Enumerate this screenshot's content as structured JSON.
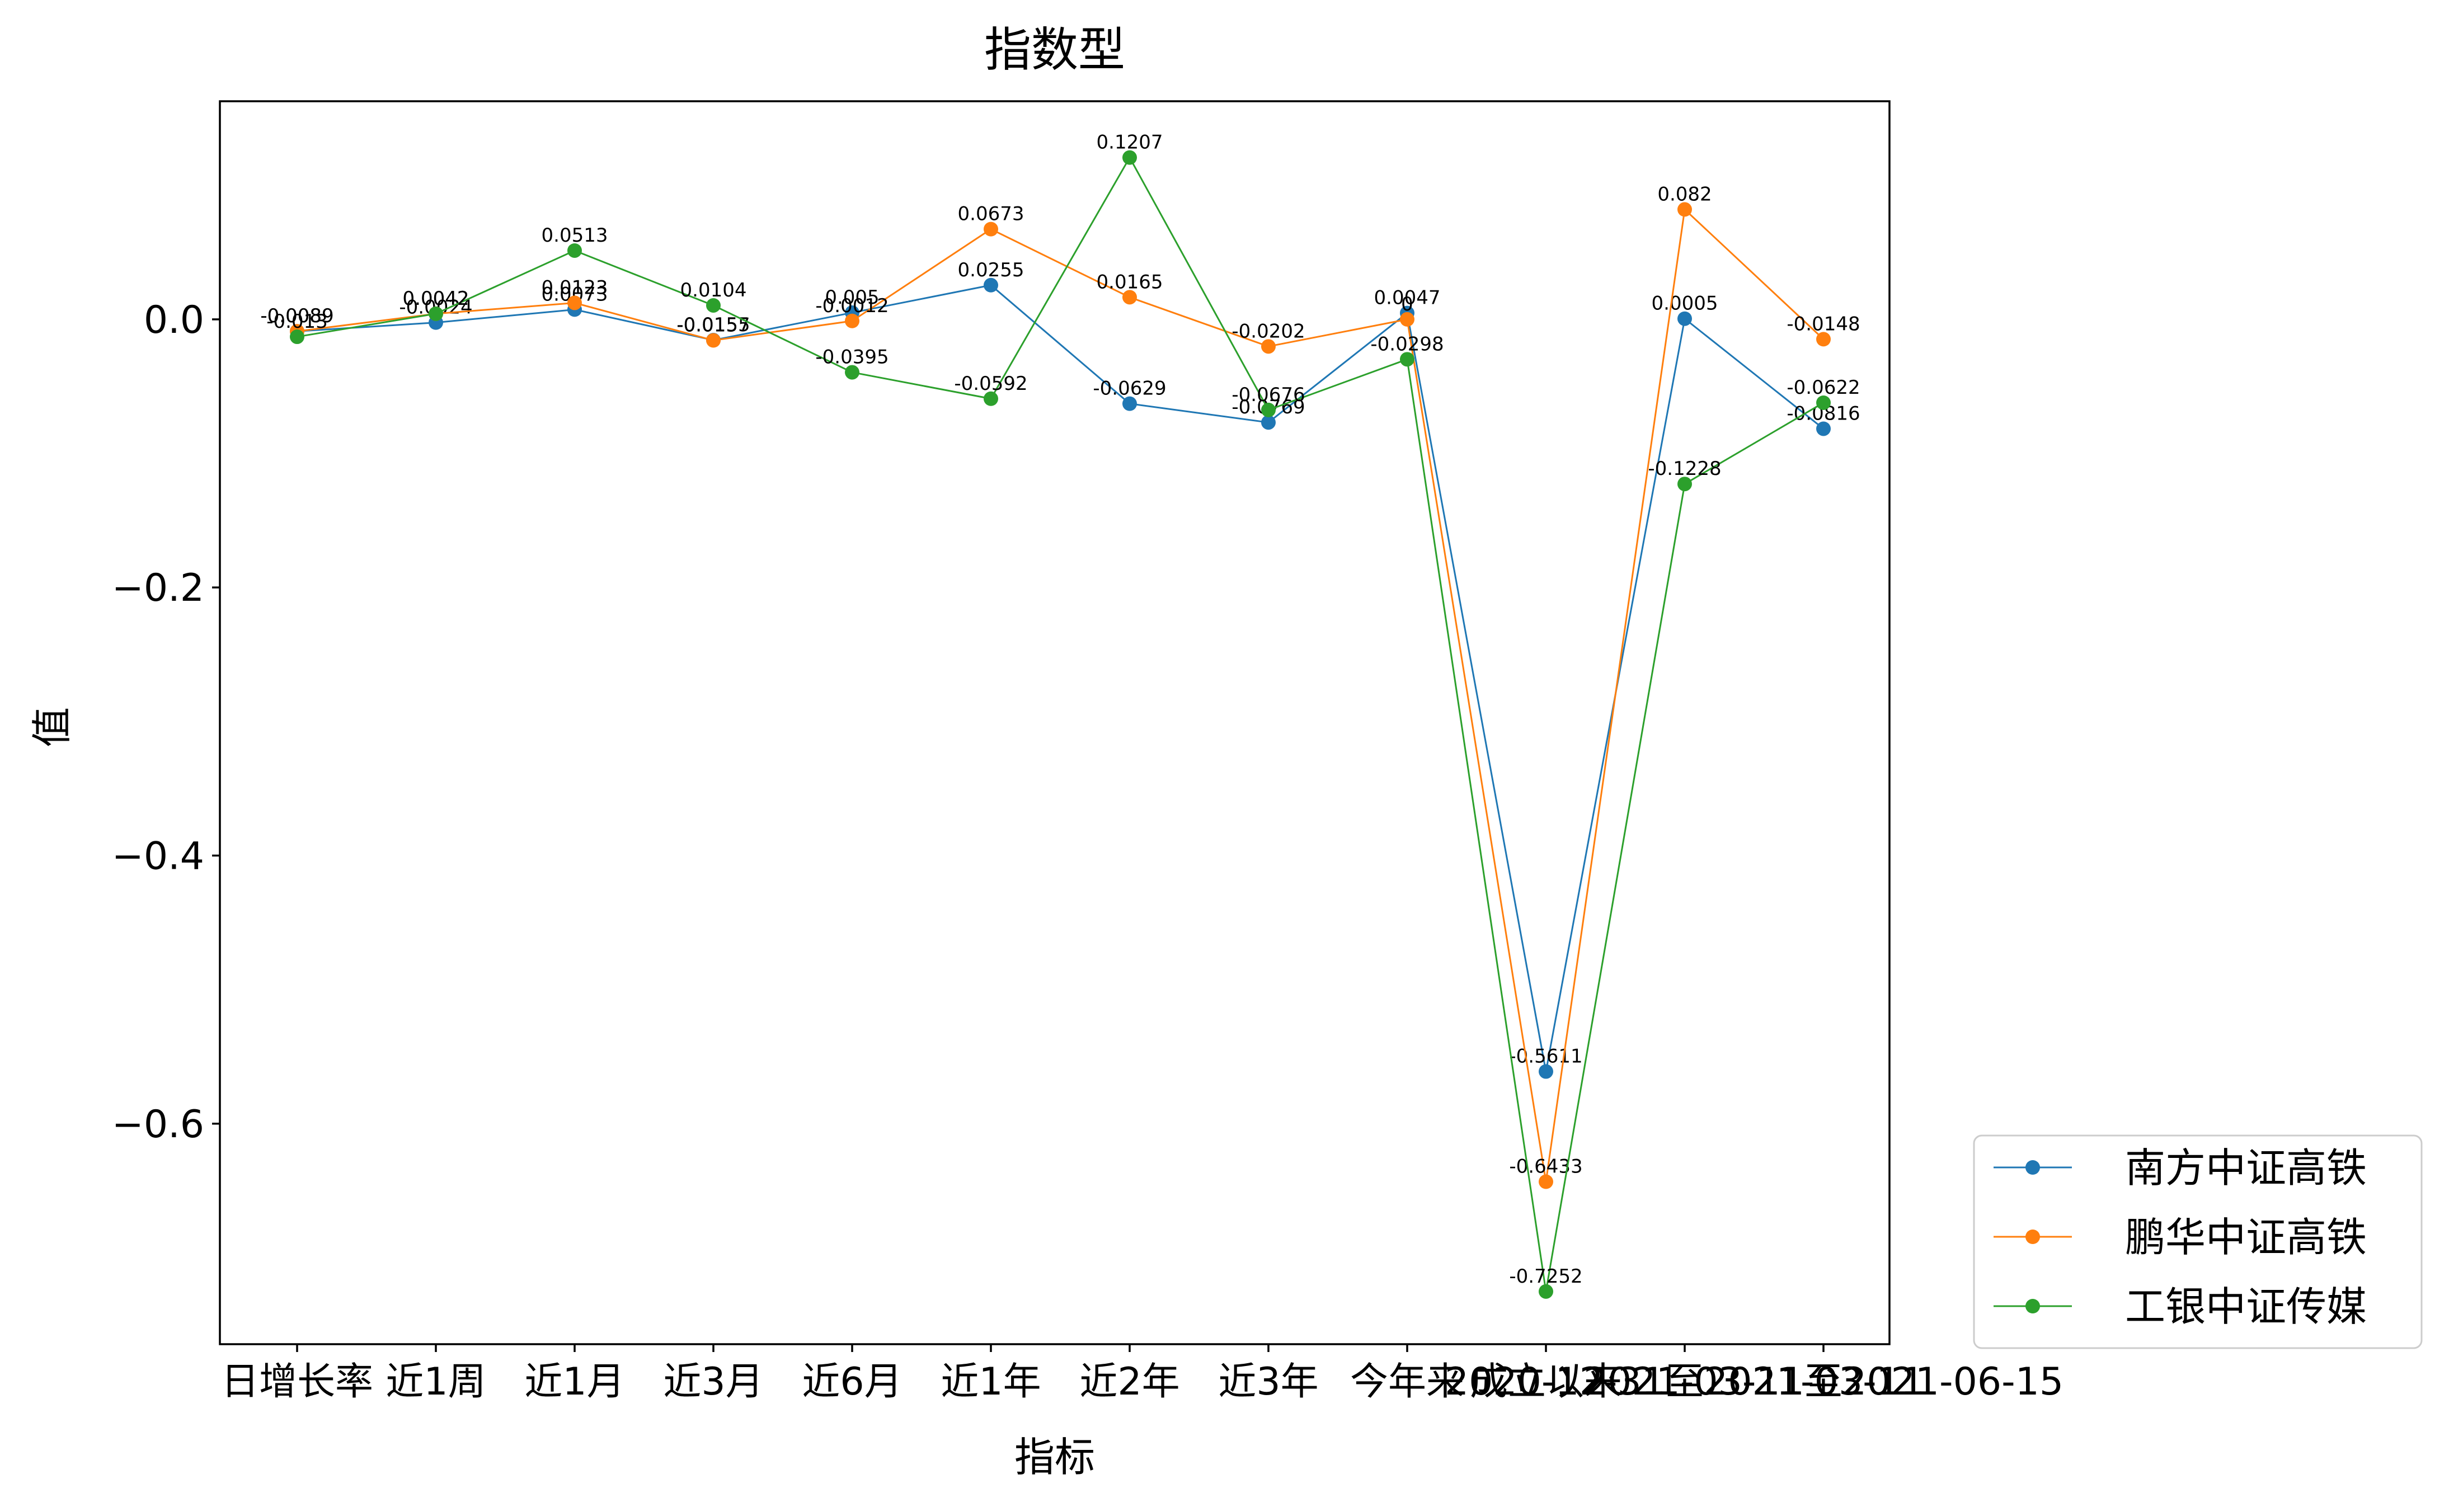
{
  "chart_data": {
    "type": "line",
    "title": "指数型",
    "xlabel": "指标",
    "ylabel": "值",
    "categories": [
      "日增长率",
      "近1周",
      "近1月",
      "近3月",
      "近6月",
      "近1年",
      "近2年",
      "近3年",
      "今年来",
      "成立以来",
      "2020-12-31至2021-03-11",
      "2021-03-11至2021-06-15"
    ],
    "ylim": [
      -0.7645,
      0.1627
    ],
    "yticks": [
      0.0,
      -0.2,
      -0.4,
      -0.6
    ],
    "ytick_labels": [
      "0.0",
      "−0.2",
      "−0.4",
      "−0.6"
    ],
    "grid": false,
    "legend": "outside-bottom-right",
    "series": [
      {
        "name": "南方中证高铁",
        "color": "#1f77b4",
        "values": [
          -0.0089,
          -0.0024,
          0.0073,
          -0.0155,
          0.005,
          0.0255,
          -0.0629,
          -0.0769,
          0.0047,
          -0.5611,
          0.0005,
          -0.0816
        ]
      },
      {
        "name": "鹏华中证高铁",
        "color": "#ff7f0e",
        "values": [
          -0.0089,
          0.0042,
          0.0123,
          -0.0157,
          -0.0012,
          0.0673,
          0.0165,
          -0.0202,
          0.0,
          -0.6433,
          0.082,
          -0.0148
        ]
      },
      {
        "name": "工银中证传媒",
        "color": "#2ca02c",
        "values": [
          -0.013,
          0.0042,
          0.0513,
          0.0104,
          -0.0395,
          -0.0592,
          0.1207,
          -0.0676,
          -0.0298,
          -0.7252,
          -0.1228,
          -0.0622
        ]
      }
    ]
  }
}
